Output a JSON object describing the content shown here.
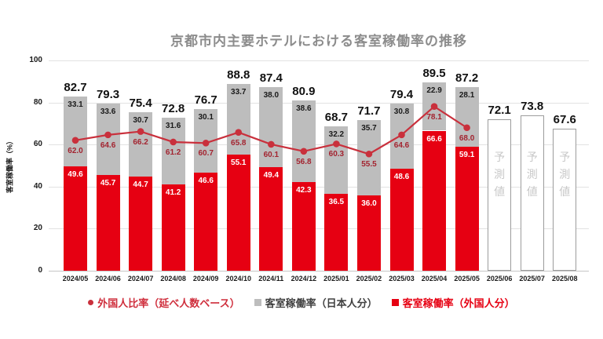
{
  "title": "京都市内主要ホテルにおける客室稼働率の推移",
  "colors": {
    "bar_foreign": "#e60012",
    "bar_japanese": "#bdbdbd",
    "line": "#c9303c",
    "line_label": "#a32430",
    "title_gray": "#8c8c8c",
    "grid": "#e2e2e2",
    "forecast_border": "#9c9c9c",
    "forecast_text": "#c8c8c8",
    "legend_foreign_text": "#cf2e3c",
    "legend_japanese_text": "#404040",
    "legend_foreign_bar_text": "#e60012"
  },
  "chart_data": {
    "type": "bar",
    "title": "京都市内主要ホテルにおける客室稼働率の推移",
    "xlabel": "",
    "ylabel": "客室稼働率（%）",
    "ylim": [
      0,
      100
    ],
    "yticks": [
      0,
      20,
      40,
      60,
      80,
      100
    ],
    "grid": true,
    "legend_position": "bottom",
    "categories": [
      "2024/05",
      "2024/06",
      "2024/07",
      "2024/08",
      "2024/09",
      "2024/10",
      "2024/11",
      "2024/12",
      "2025/01",
      "2025/02",
      "2025/03",
      "2025/04",
      "2025/05",
      "2025/06",
      "2025/07",
      "2025/08"
    ],
    "series": [
      {
        "name": "客室稼働率（外国人分）",
        "type": "bar-stack-bottom",
        "values": [
          49.6,
          45.7,
          44.7,
          41.2,
          46.6,
          55.1,
          49.4,
          42.3,
          36.5,
          36.0,
          48.6,
          66.6,
          59.1,
          null,
          null,
          null
        ]
      },
      {
        "name": "客室稼働率（日本人分）",
        "type": "bar-stack-top",
        "values": [
          33.1,
          33.6,
          30.7,
          31.6,
          30.1,
          33.7,
          38.0,
          38.6,
          32.2,
          35.7,
          30.8,
          22.9,
          28.1,
          null,
          null,
          null
        ]
      },
      {
        "name": "外国人比率（延べ人数ベース）",
        "type": "line",
        "values": [
          62.0,
          64.6,
          66.2,
          61.2,
          60.7,
          65.8,
          60.1,
          56.8,
          60.3,
          55.5,
          64.6,
          78.1,
          68.0,
          null,
          null,
          null
        ]
      }
    ],
    "totals": [
      82.7,
      79.3,
      75.4,
      72.8,
      76.7,
      88.8,
      87.4,
      80.9,
      68.7,
      71.7,
      79.4,
      89.5,
      87.2,
      72.1,
      73.8,
      67.6
    ],
    "forecast": {
      "label": "予測値",
      "months": [
        "2025/06",
        "2025/07",
        "2025/08"
      ],
      "values": [
        72.1,
        73.8,
        67.6
      ]
    }
  },
  "legend": {
    "items": [
      {
        "label": "外国人比率（延べ人数ベース）",
        "marker": "dot"
      },
      {
        "label": "客室稼働率（日本人分）",
        "marker": "square"
      },
      {
        "label": "客室稼働率（外国人分）",
        "marker": "square"
      }
    ]
  }
}
